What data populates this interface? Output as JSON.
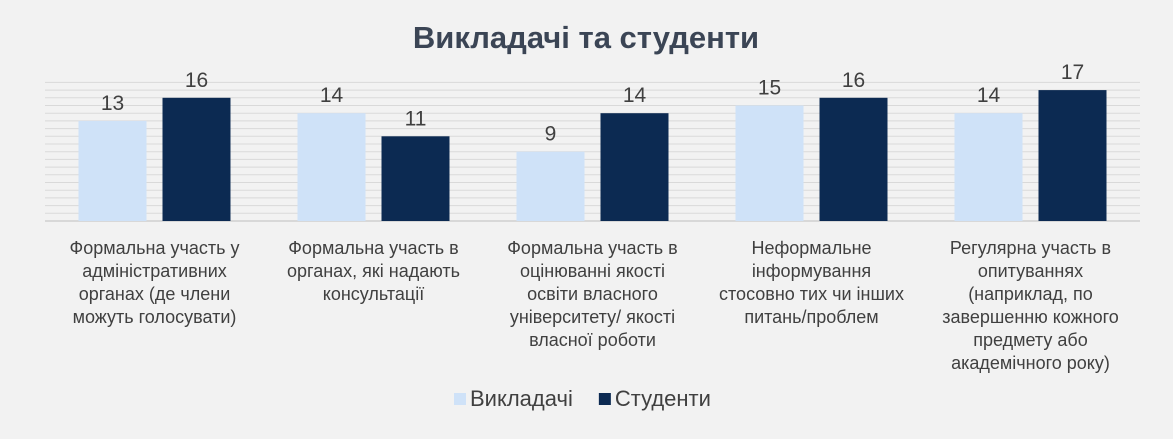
{
  "chart_data": {
    "type": "bar",
    "title": "Викладачі та студенти",
    "categories": [
      [
        "Формальна участь у",
        "адміністративних",
        "органах (де члени",
        "можуть голосувати)"
      ],
      [
        "Формальна участь в",
        "органах, які надають",
        "консультації"
      ],
      [
        "Формальна участь в",
        "оцінюванні якості",
        "освіти власного",
        "університету/ якості",
        "власної роботи"
      ],
      [
        "Неформальне",
        "інформування",
        "стосовно тих чи інших",
        "питань/проблем"
      ],
      [
        "Регулярна участь в",
        "опитуваннях",
        "(наприклад, по",
        "завершенню кожного",
        "предмету або",
        "академічного року)"
      ]
    ],
    "series": [
      {
        "name": "Викладачі",
        "values": [
          13,
          14,
          9,
          15,
          14
        ],
        "color": "#cfe2f8"
      },
      {
        "name": "Студенти",
        "values": [
          16,
          11,
          14,
          16,
          17
        ],
        "color": "#0c2a52"
      }
    ],
    "ylim": [
      0,
      18
    ],
    "grid": true,
    "legend": "bottom",
    "data_labels": true
  }
}
